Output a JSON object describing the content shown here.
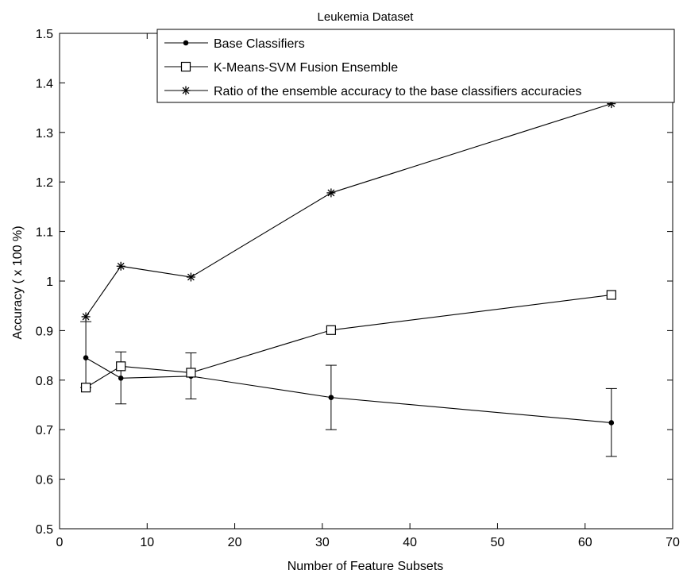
{
  "chart_data": {
    "type": "line",
    "title": "Leukemia Dataset",
    "xlabel": "Number of Feature Subsets",
    "ylabel": "Accuracy ( x 100 %)",
    "xlim": [
      0,
      70
    ],
    "ylim": [
      0.5,
      1.5
    ],
    "xticks": [
      "0",
      "10",
      "20",
      "30",
      "40",
      "50",
      "60",
      "70"
    ],
    "yticks": [
      "0.5",
      "0.6",
      "0.7",
      "0.8",
      "0.9",
      "1",
      "1.1",
      "1.2",
      "1.3",
      "1.4",
      "1.5"
    ],
    "grid": false,
    "legend_position": "top-right",
    "x": [
      3,
      7,
      15,
      31,
      63
    ],
    "series": [
      {
        "name": "Base Classifiers",
        "marker": "dot",
        "values": [
          0.845,
          0.804,
          0.808,
          0.765,
          0.714
        ],
        "error_low": [
          0.785,
          0.752,
          0.762,
          0.7,
          0.646
        ],
        "error_high": [
          0.918,
          0.857,
          0.855,
          0.83,
          0.783
        ]
      },
      {
        "name": "K-Means-SVM Fusion Ensemble",
        "marker": "square",
        "values": [
          0.785,
          0.828,
          0.815,
          0.901,
          0.972
        ]
      },
      {
        "name": "Ratio of the ensemble accuracy to the base classifiers accuracies",
        "marker": "asterisk",
        "values": [
          0.928,
          1.03,
          1.008,
          1.178,
          1.358
        ]
      }
    ]
  }
}
